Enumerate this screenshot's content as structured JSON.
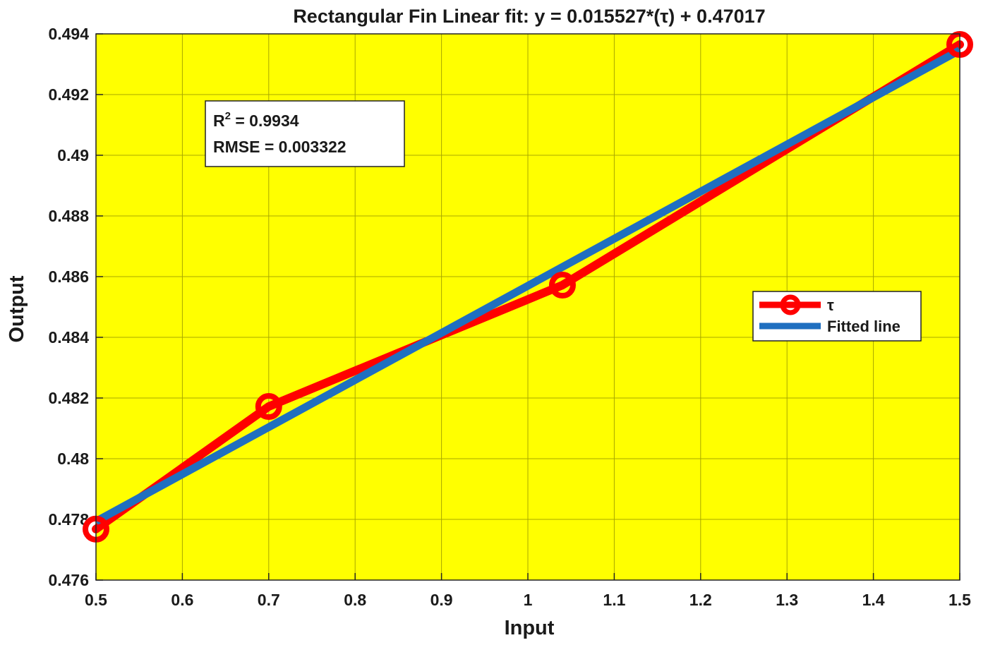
{
  "chart_data": {
    "type": "line",
    "title": "Rectangular Fin Linear fit: y = 0.015527*(τ) + 0.47017",
    "xlabel": "Input",
    "ylabel": "Output",
    "xlim": [
      0.5,
      1.5
    ],
    "ylim": [
      0.476,
      0.494
    ],
    "xticks": [
      "0.5",
      "0.6",
      "0.7",
      "0.8",
      "0.9",
      "1",
      "1.1",
      "1.2",
      "1.3",
      "1.4",
      "1.5"
    ],
    "yticks": [
      "0.476",
      "0.478",
      "0.48",
      "0.482",
      "0.484",
      "0.486",
      "0.488",
      "0.49",
      "0.492",
      "0.494"
    ],
    "grid": true,
    "background": "#ffff00",
    "series": [
      {
        "name": "τ",
        "color": "#ff0000",
        "marker": "circle",
        "x": [
          0.5,
          0.7,
          1.04,
          1.5
        ],
        "y": [
          0.47768,
          0.48172,
          0.48572,
          0.49365
        ]
      },
      {
        "name": "Fitted line",
        "color": "#1f6fc0",
        "marker": "none",
        "x": [
          0.5,
          1.5
        ],
        "y": [
          0.477934,
          0.493461
        ]
      }
    ],
    "stats_box": {
      "r2_label": "R",
      "r2_sup": "2",
      "r2_value": " =  0.9934",
      "rmse_text": "RMSE  =  0.003322"
    },
    "legend": {
      "placement": "right",
      "entries": [
        "τ",
        "Fitted line"
      ]
    }
  }
}
